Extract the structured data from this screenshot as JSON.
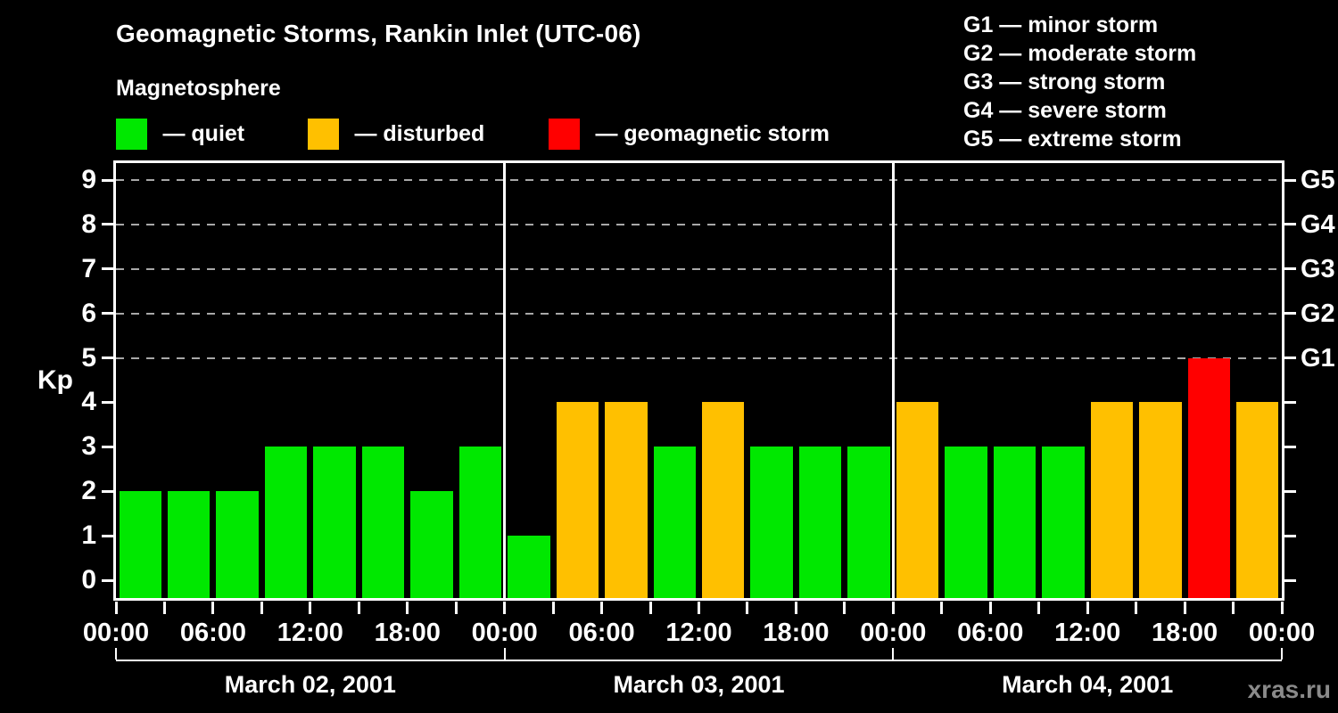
{
  "page": {
    "title": "Geomagnetic Storms, Rankin Inlet (UTC-06)",
    "subtitle": "Magnetosphere",
    "watermark": "xras.ru"
  },
  "legend": {
    "items": [
      {
        "name": "quiet",
        "label": "— quiet",
        "color": "#00e800"
      },
      {
        "name": "disturbed",
        "label": "— disturbed",
        "color": "#ffc000"
      },
      {
        "name": "storm",
        "label": "— geomagnetic storm",
        "color": "#ff0000"
      }
    ]
  },
  "g_scale_legend": [
    "G1 — minor storm",
    "G2 — moderate storm",
    "G3 — strong storm",
    "G4 — severe storm",
    "G5 — extreme storm"
  ],
  "chart_data": {
    "type": "bar",
    "title": "Geomagnetic Storms, Rankin Inlet (UTC-06)",
    "subtitle": "Magnetosphere",
    "ylabel": "Kp",
    "ylim": [
      0,
      9
    ],
    "y_ticks": [
      0,
      1,
      2,
      3,
      4,
      5,
      6,
      7,
      8,
      9
    ],
    "grid_kp_levels": [
      5,
      6,
      7,
      8,
      9
    ],
    "right_axis_labels": [
      {
        "label": "G1",
        "kp": 5
      },
      {
        "label": "G2",
        "kp": 6
      },
      {
        "label": "G3",
        "kp": 7
      },
      {
        "label": "G4",
        "kp": 8
      },
      {
        "label": "G5",
        "kp": 9
      }
    ],
    "hours_per_bar": 3,
    "x_tick_labels_per_day": [
      "00:00",
      "06:00",
      "12:00",
      "18:00"
    ],
    "x_final_label": "00:00",
    "days": [
      {
        "date": "March 02, 2001",
        "kp": [
          2,
          2,
          2,
          3,
          3,
          3,
          2,
          3
        ],
        "state": [
          "quiet",
          "quiet",
          "quiet",
          "quiet",
          "quiet",
          "quiet",
          "quiet",
          "quiet"
        ]
      },
      {
        "date": "March 03, 2001",
        "kp": [
          1,
          4,
          4,
          3,
          4,
          3,
          3,
          3
        ],
        "state": [
          "quiet",
          "disturbed",
          "disturbed",
          "quiet",
          "disturbed",
          "quiet",
          "quiet",
          "quiet"
        ]
      },
      {
        "date": "March 04, 2001",
        "kp": [
          4,
          3,
          3,
          3,
          4,
          4,
          5,
          4
        ],
        "state": [
          "disturbed",
          "quiet",
          "quiet",
          "quiet",
          "disturbed",
          "disturbed",
          "storm",
          "disturbed"
        ]
      }
    ],
    "colors": {
      "quiet": "#00e800",
      "disturbed": "#ffc000",
      "storm": "#ff0000",
      "axis": "#ffffff",
      "grid": "#a8a8a8",
      "background": "#000000"
    },
    "legend_position": "top-left",
    "grid": "dashed horizontal at G-storm levels only"
  }
}
